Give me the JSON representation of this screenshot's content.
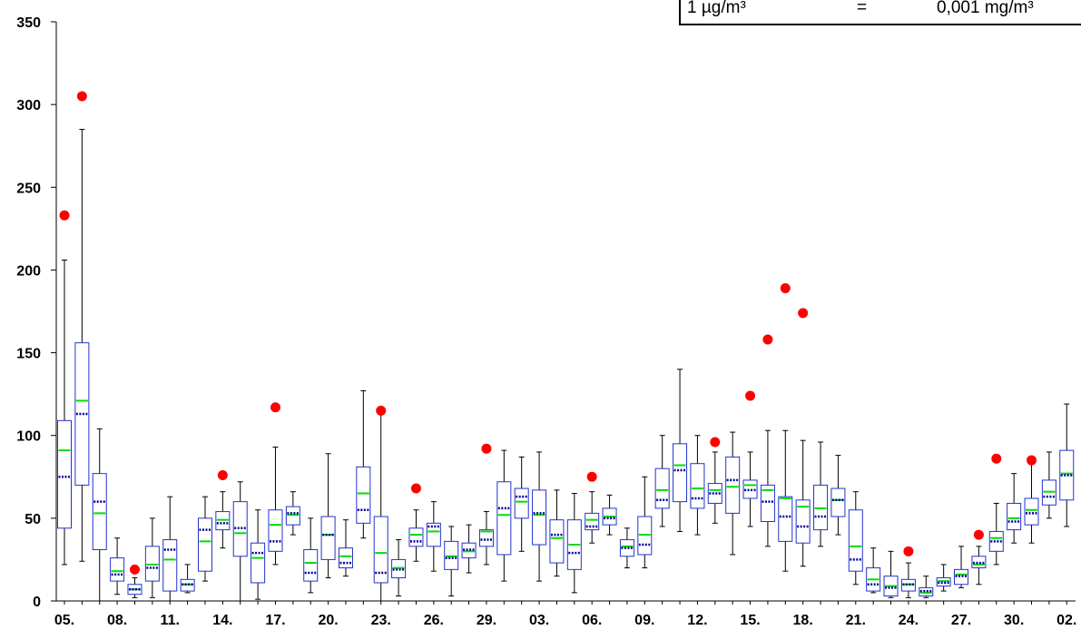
{
  "chart_data": {
    "type": "box",
    "title": "",
    "xlabel": "",
    "ylabel": "",
    "ylim": [
      0,
      350
    ],
    "yticks": [
      0,
      50,
      100,
      150,
      200,
      250,
      300,
      350
    ],
    "xtick_labels": [
      "05.",
      "08.",
      "11.",
      "14.",
      "17.",
      "20.",
      "23.",
      "26.",
      "29.",
      "03.",
      "06.",
      "09.",
      "12.",
      "15.",
      "18.",
      "21.",
      "24.",
      "27.",
      "30.",
      "02."
    ],
    "unit_box": {
      "left": "1 µg/m³",
      "middle": "=",
      "right": "0,001 mg/m³"
    },
    "colors": {
      "box": "#2233cc",
      "median": "#00dd00",
      "mean": "#000099",
      "max_marker": "#ff0000",
      "whisker": "#000000"
    },
    "series": [
      {
        "lo": 22,
        "q1": 44,
        "median": 91,
        "mean": 75,
        "q3": 109,
        "hi": 206,
        "max": 233
      },
      {
        "lo": 24,
        "q1": 70,
        "median": 121,
        "mean": 113,
        "q3": 156,
        "hi": 285,
        "max": 305
      },
      {
        "lo": 0,
        "q1": 31,
        "median": 53,
        "mean": 60,
        "q3": 77,
        "hi": 104,
        "max": null
      },
      {
        "lo": 4,
        "q1": 12,
        "median": 18,
        "mean": 16,
        "q3": 26,
        "hi": 38,
        "max": null
      },
      {
        "lo": 2,
        "q1": 4,
        "median": 7,
        "mean": 7,
        "q3": 10,
        "hi": 14,
        "max": 19
      },
      {
        "lo": 2,
        "q1": 12,
        "median": 22,
        "mean": 20,
        "q3": 33,
        "hi": 50,
        "max": null
      },
      {
        "lo": 0,
        "q1": 6,
        "median": 25,
        "mean": 31,
        "q3": 37,
        "hi": 63,
        "max": null
      },
      {
        "lo": 5,
        "q1": 6,
        "median": 10,
        "mean": 10,
        "q3": 13,
        "hi": 22,
        "max": null
      },
      {
        "lo": 12,
        "q1": 18,
        "median": 36,
        "mean": 43,
        "q3": 50,
        "hi": 63,
        "max": null
      },
      {
        "lo": 32,
        "q1": 43,
        "median": 49,
        "mean": 47,
        "q3": 54,
        "hi": 66,
        "max": 76
      },
      {
        "lo": 0,
        "q1": 27,
        "median": 41,
        "mean": 44,
        "q3": 60,
        "hi": 72,
        "max": null
      },
      {
        "lo": 1,
        "q1": 11,
        "median": 26,
        "mean": 29,
        "q3": 35,
        "hi": 55,
        "max": null
      },
      {
        "lo": 22,
        "q1": 30,
        "median": 46,
        "mean": 36,
        "q3": 55,
        "hi": 93,
        "max": 117
      },
      {
        "lo": 40,
        "q1": 46,
        "median": 52,
        "mean": 53,
        "q3": 57,
        "hi": 66,
        "max": null
      },
      {
        "lo": 5,
        "q1": 12,
        "median": 23,
        "mean": 17,
        "q3": 31,
        "hi": 50,
        "max": null
      },
      {
        "lo": 14,
        "q1": 25,
        "median": 40,
        "mean": 40,
        "q3": 51,
        "hi": 89,
        "max": null
      },
      {
        "lo": 15,
        "q1": 20,
        "median": 27,
        "mean": 23,
        "q3": 32,
        "hi": 49,
        "max": null
      },
      {
        "lo": 38,
        "q1": 47,
        "median": 65,
        "mean": 55,
        "q3": 81,
        "hi": 127,
        "max": null
      },
      {
        "lo": 0,
        "q1": 11,
        "median": 29,
        "mean": 17,
        "q3": 51,
        "hi": 114,
        "max": 115
      },
      {
        "lo": 3,
        "q1": 14,
        "median": 20,
        "mean": 19,
        "q3": 25,
        "hi": 37,
        "max": null
      },
      {
        "lo": 24,
        "q1": 33,
        "median": 40,
        "mean": 36,
        "q3": 44,
        "hi": 55,
        "max": 68
      },
      {
        "lo": 18,
        "q1": 33,
        "median": 42,
        "mean": 45,
        "q3": 47,
        "hi": 60,
        "max": null
      },
      {
        "lo": 3,
        "q1": 19,
        "median": 27,
        "mean": 26,
        "q3": 36,
        "hi": 45,
        "max": null
      },
      {
        "lo": 17,
        "q1": 26,
        "median": 30,
        "mean": 31,
        "q3": 35,
        "hi": 46,
        "max": null
      },
      {
        "lo": 22,
        "q1": 33,
        "median": 42,
        "mean": 37,
        "q3": 43,
        "hi": 54,
        "max": 92
      },
      {
        "lo": 12,
        "q1": 28,
        "median": 52,
        "mean": 56,
        "q3": 72,
        "hi": 91,
        "max": null
      },
      {
        "lo": 30,
        "q1": 50,
        "median": 60,
        "mean": 63,
        "q3": 68,
        "hi": 87,
        "max": null
      },
      {
        "lo": 12,
        "q1": 34,
        "median": 52,
        "mean": 53,
        "q3": 67,
        "hi": 90,
        "max": null
      },
      {
        "lo": 15,
        "q1": 23,
        "median": 38,
        "mean": 40,
        "q3": 49,
        "hi": 67,
        "max": null
      },
      {
        "lo": 5,
        "q1": 19,
        "median": 34,
        "mean": 29,
        "q3": 49,
        "hi": 65,
        "max": null
      },
      {
        "lo": 35,
        "q1": 43,
        "median": 49,
        "mean": 45,
        "q3": 53,
        "hi": 66,
        "max": 75
      },
      {
        "lo": 40,
        "q1": 46,
        "median": 51,
        "mean": 50,
        "q3": 56,
        "hi": 64,
        "max": null
      },
      {
        "lo": 20,
        "q1": 27,
        "median": 33,
        "mean": 32,
        "q3": 37,
        "hi": 44,
        "max": null
      },
      {
        "lo": 20,
        "q1": 28,
        "median": 40,
        "mean": 34,
        "q3": 51,
        "hi": 75,
        "max": null
      },
      {
        "lo": 45,
        "q1": 56,
        "median": 67,
        "mean": 61,
        "q3": 80,
        "hi": 100,
        "max": null
      },
      {
        "lo": 42,
        "q1": 60,
        "median": 82,
        "mean": 79,
        "q3": 95,
        "hi": 140,
        "max": null
      },
      {
        "lo": 40,
        "q1": 56,
        "median": 68,
        "mean": 62,
        "q3": 83,
        "hi": 100,
        "max": null
      },
      {
        "lo": 47,
        "q1": 59,
        "median": 67,
        "mean": 65,
        "q3": 71,
        "hi": 90,
        "max": 96
      },
      {
        "lo": 28,
        "q1": 53,
        "median": 69,
        "mean": 73,
        "q3": 87,
        "hi": 102,
        "max": null
      },
      {
        "lo": 45,
        "q1": 62,
        "median": 70,
        "mean": 67,
        "q3": 73,
        "hi": 90,
        "max": 124
      },
      {
        "lo": 33,
        "q1": 48,
        "median": 67,
        "mean": 60,
        "q3": 70,
        "hi": 103,
        "max": 158
      },
      {
        "lo": 18,
        "q1": 36,
        "median": 62,
        "mean": 51,
        "q3": 63,
        "hi": 103,
        "max": 189
      },
      {
        "lo": 21,
        "q1": 35,
        "median": 57,
        "mean": 45,
        "q3": 61,
        "hi": 97,
        "max": 174
      },
      {
        "lo": 33,
        "q1": 43,
        "median": 56,
        "mean": 51,
        "q3": 70,
        "hi": 96,
        "max": null
      },
      {
        "lo": 40,
        "q1": 51,
        "median": 61,
        "mean": 61,
        "q3": 68,
        "hi": 88,
        "max": null
      },
      {
        "lo": 10,
        "q1": 18,
        "median": 33,
        "mean": 25,
        "q3": 55,
        "hi": 66,
        "max": null
      },
      {
        "lo": 5,
        "q1": 6,
        "median": 13,
        "mean": 10,
        "q3": 20,
        "hi": 32,
        "max": null
      },
      {
        "lo": 2,
        "q1": 3,
        "median": 9,
        "mean": 8,
        "q3": 15,
        "hi": 30,
        "max": null
      },
      {
        "lo": 2,
        "q1": 6,
        "median": 10,
        "mean": 10,
        "q3": 13,
        "hi": 23,
        "max": 30
      },
      {
        "lo": 2,
        "q1": 3,
        "median": 5,
        "mean": 6,
        "q3": 8,
        "hi": 15,
        "max": null
      },
      {
        "lo": 6,
        "q1": 9,
        "median": 12,
        "mean": 11,
        "q3": 14,
        "hi": 22,
        "max": null
      },
      {
        "lo": 8,
        "q1": 10,
        "median": 16,
        "mean": 15,
        "q3": 19,
        "hi": 33,
        "max": null
      },
      {
        "lo": 10,
        "q1": 20,
        "median": 22,
        "mean": 23,
        "q3": 27,
        "hi": 33,
        "max": 40
      },
      {
        "lo": 22,
        "q1": 30,
        "median": 38,
        "mean": 36,
        "q3": 42,
        "hi": 59,
        "max": 86
      },
      {
        "lo": 35,
        "q1": 43,
        "median": 50,
        "mean": 48,
        "q3": 59,
        "hi": 77,
        "max": null
      },
      {
        "lo": 35,
        "q1": 46,
        "median": 55,
        "mean": 53,
        "q3": 62,
        "hi": 86,
        "max": 85
      },
      {
        "lo": 50,
        "q1": 58,
        "median": 66,
        "mean": 63,
        "q3": 73,
        "hi": 90,
        "max": null
      },
      {
        "lo": 45,
        "q1": 61,
        "median": 77,
        "mean": 76,
        "q3": 91,
        "hi": 119,
        "max": null
      }
    ]
  }
}
